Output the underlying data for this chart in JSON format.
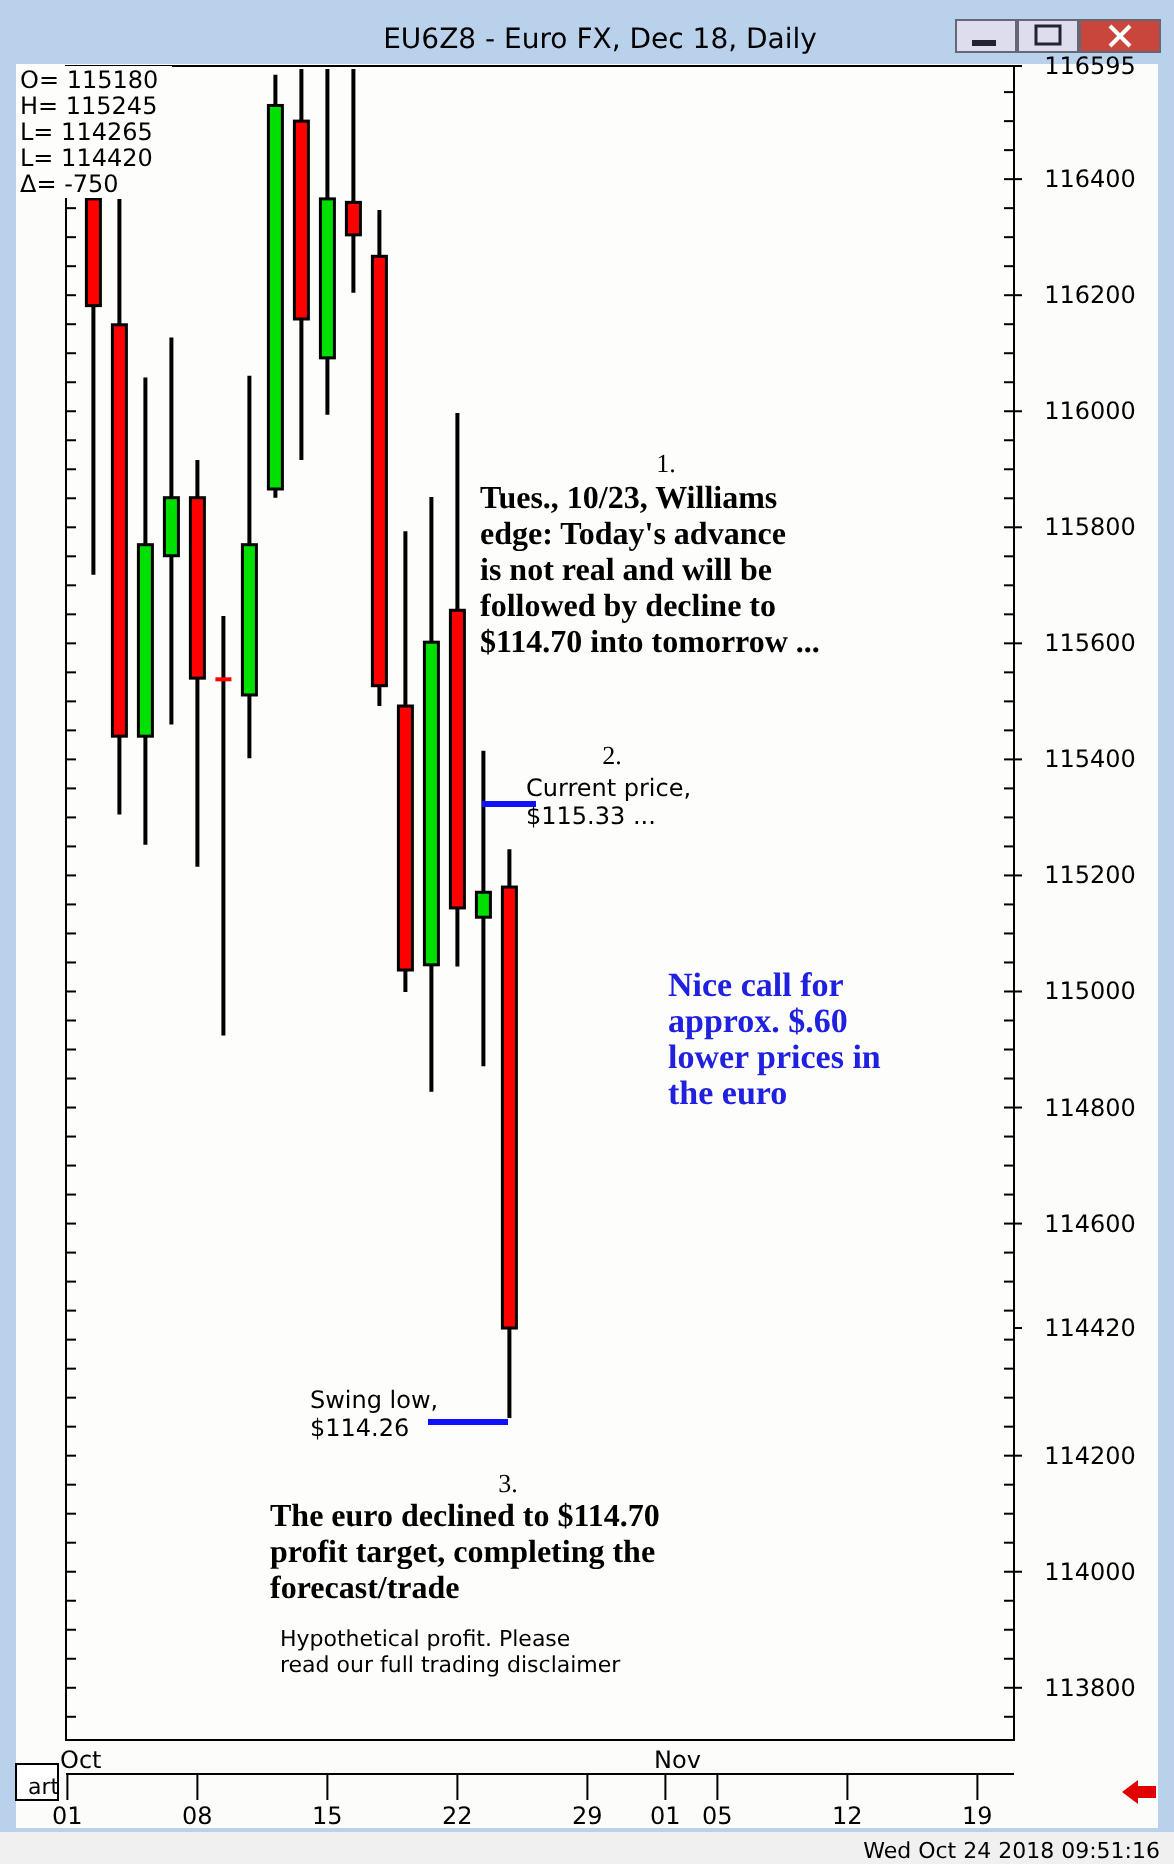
{
  "chart_data": {
    "type": "candlestick",
    "title": "EU6Z8 - Euro FX, Dec 18, Daily",
    "categories": [
      "01",
      null,
      null,
      null,
      null,
      "08",
      null,
      null,
      null,
      null,
      "15",
      null,
      null,
      null,
      null,
      "22",
      null,
      null,
      null,
      null,
      "29",
      null,
      null,
      "01",
      null,
      "05",
      null,
      null,
      null,
      null,
      "12",
      null,
      null,
      null,
      null,
      "19",
      null
    ],
    "ohlc": [
      null,
      [
        116366,
        116366,
        115718,
        116182
      ],
      [
        116149,
        116366,
        115305,
        115440
      ],
      [
        115440,
        116058,
        115253,
        115770
      ],
      [
        115751,
        116127,
        115460,
        115851
      ],
      [
        115851,
        115916,
        115215,
        115540
      ],
      [
        115538,
        115647,
        114924,
        115538
      ],
      [
        115511,
        116061,
        115402,
        115770
      ],
      [
        115866,
        116580,
        115851,
        116527
      ],
      [
        116500,
        116590,
        115916,
        116159
      ],
      [
        116092,
        116590,
        115994,
        116366
      ],
      [
        116360,
        116590,
        116204,
        116304
      ],
      [
        116267,
        116347,
        115492,
        115527
      ],
      [
        115492,
        115793,
        114999,
        115037
      ],
      [
        115046,
        115852,
        114827,
        115602
      ],
      [
        115657,
        115997,
        115043,
        115144
      ],
      [
        115128,
        115415,
        114871,
        115171
      ],
      [
        115180,
        115245,
        114265,
        114420
      ],
      null,
      null,
      null,
      null,
      null,
      null,
      null,
      null,
      null,
      null,
      null,
      null,
      null,
      null,
      null,
      null,
      null,
      null,
      null
    ],
    "colors": [
      null,
      "#ff0000",
      "#ff0000",
      "#00e000",
      "#00e000",
      "#ff0000",
      "#ff0000",
      "#00e000",
      "#00e000",
      "#ff0000",
      "#00e000",
      "#ff0000",
      "#ff0000",
      "#ff0000",
      "#00e000",
      "#ff0000",
      "#00e000",
      "#ff0000",
      null,
      null,
      null,
      null,
      null,
      null,
      null,
      null,
      null,
      null,
      null,
      null,
      null,
      null,
      null,
      null,
      null,
      null,
      null
    ],
    "ylim": [
      113710,
      116595
    ],
    "yticks": [
      113800,
      114000,
      114200,
      {
        "value": 114420,
        "label": "114420"
      },
      114600,
      114800,
      115000,
      115200,
      115400,
      115600,
      115800,
      116000,
      116200,
      116400,
      {
        "value": 116595,
        "label": "116595"
      }
    ],
    "annotations": [
      "O= 115180",
      "H= 115245",
      "L= 114265",
      "L= 114420",
      "Δ= -750",
      "1.",
      "Tues., 10/23, Williams\nedge: Today's advance\nis not real and will be\nfollowed by decline to\n$114.70 into tomorrow ...",
      "2.",
      "Current price,\n$115.33 ...",
      "Nice call for\napprox. $.60\nlower prices in\nthe euro",
      "Swing low,\n$114.26",
      "3.",
      "The euro declined to $114.70\nprofit target, completing the\nforecast/trade",
      "Hypothetical profit. Please\nread our full trading disclaimer",
      "Oct",
      "Nov",
      "art",
      "Wed Oct 24 2018 09:51:16"
    ]
  }
}
